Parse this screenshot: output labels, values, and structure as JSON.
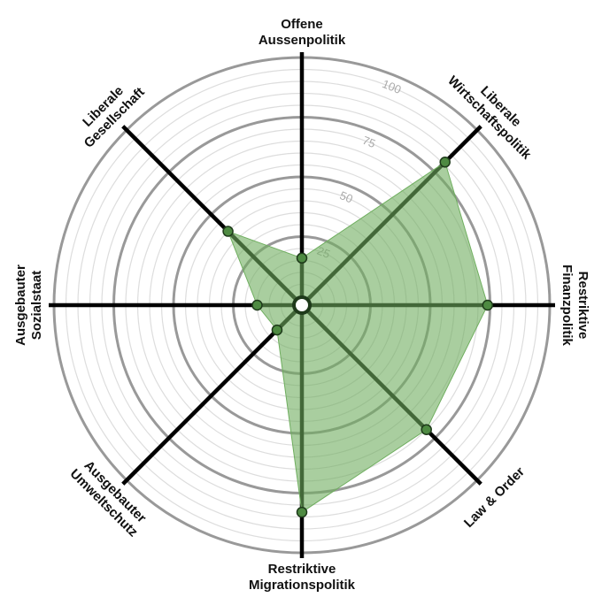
{
  "chart_data": {
    "type": "radar",
    "categories": [
      [
        "Offene",
        "Aussenpolitik"
      ],
      [
        "Liberale",
        "Wirtschaftspolitik"
      ],
      [
        "Restriktive",
        "Finanzpolitik"
      ],
      [
        "Law & Order"
      ],
      [
        "Restriktive",
        "Migrationspolitik"
      ],
      [
        "Ausgebauter",
        "Umweltschutz"
      ],
      [
        "Ausgebauter",
        "Sozialstaat"
      ],
      [
        "Liberale",
        "Gesellschaft"
      ]
    ],
    "values": [
      16,
      81,
      74,
      70,
      83,
      11,
      15,
      40
    ],
    "rlim": [
      0,
      100
    ],
    "rticks": [
      25,
      50,
      75,
      100
    ],
    "minor_grid_step": 5,
    "color": "#6fae5f",
    "point_color": "#4e8a42"
  }
}
